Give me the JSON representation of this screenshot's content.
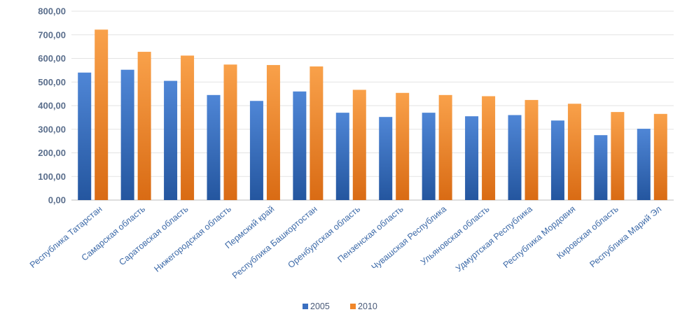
{
  "chart_data": {
    "type": "bar",
    "title": "",
    "xlabel": "",
    "ylabel": "",
    "ylim": [
      0,
      800
    ],
    "yticks": [
      "0,00",
      "100,00",
      "200,00",
      "300,00",
      "400,00",
      "500,00",
      "600,00",
      "700,00",
      "800,00"
    ],
    "grid": true,
    "legend_position": "bottom",
    "categories": [
      "Республика Татарстан",
      "Самарская область",
      "Саратовская область",
      "Нижегородская область",
      "Пермский край",
      "Республика Башкортостан",
      "Оренбургская область",
      "Пензенская область",
      "Чувашская Республика",
      "Ульяновская область",
      "Удмуртская Республика",
      "Республика Мордовия",
      "Кировская область",
      "Республика Марий Эл"
    ],
    "series": [
      {
        "name": "2005",
        "color": "#3a6fc0",
        "values": [
          540,
          552,
          505,
          445,
          420,
          460,
          370,
          352,
          370,
          355,
          360,
          337,
          275,
          302
        ]
      },
      {
        "name": "2010",
        "color": "#f0862a",
        "values": [
          722,
          628,
          612,
          574,
          572,
          566,
          467,
          454,
          445,
          440,
          424,
          408,
          373,
          365
        ]
      }
    ]
  }
}
